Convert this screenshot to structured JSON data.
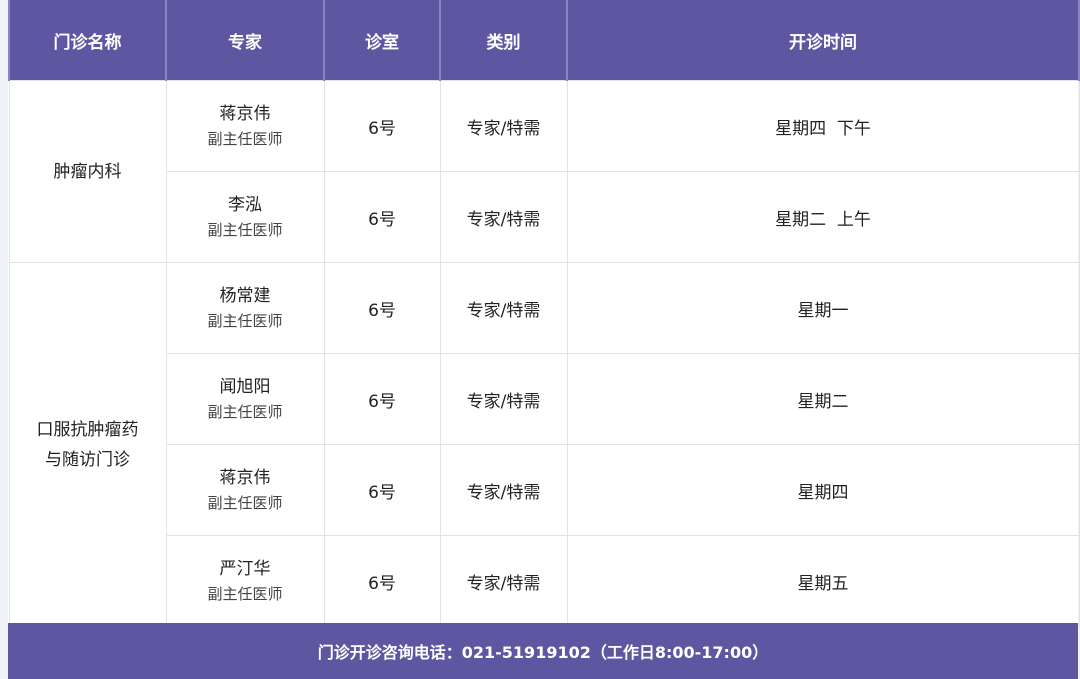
{
  "headers": [
    "门诊名称",
    "专家",
    "诊室",
    "类别",
    "开诊时间"
  ],
  "groups": [
    {
      "clinic": "肿瘤内科",
      "rows": [
        {
          "expert": "蒋京伟",
          "title": "副主任医师",
          "room": "6号",
          "category": "专家/特需",
          "time": "星期四  下午"
        },
        {
          "expert": "李泓",
          "title": "副主任医师",
          "room": "6号",
          "category": "专家/特需",
          "time": "星期二  上午"
        }
      ]
    },
    {
      "clinic_line1": "口服抗肿瘤药",
      "clinic_line2": "与随访门诊",
      "rows": [
        {
          "expert": "杨常建",
          "title": "副主任医师",
          "room": "6号",
          "category": "专家/特需",
          "time": "星期一"
        },
        {
          "expert": "闻旭阳",
          "title": "副主任医师",
          "room": "6号",
          "category": "专家/特需",
          "time": "星期二"
        },
        {
          "expert": "蒋京伟",
          "title": "副主任医师",
          "room": "6号",
          "category": "专家/特需",
          "time": "星期四"
        },
        {
          "expert": "严汀华",
          "title": "副主任医师",
          "room": "6号",
          "category": "专家/特需",
          "time": "星期五"
        }
      ]
    }
  ],
  "footer": "门诊开诊咨询电话：021-51919102（工作日8:00-17:00）",
  "colors": {
    "header": "#5d57a1",
    "background": "#eef1f7"
  }
}
